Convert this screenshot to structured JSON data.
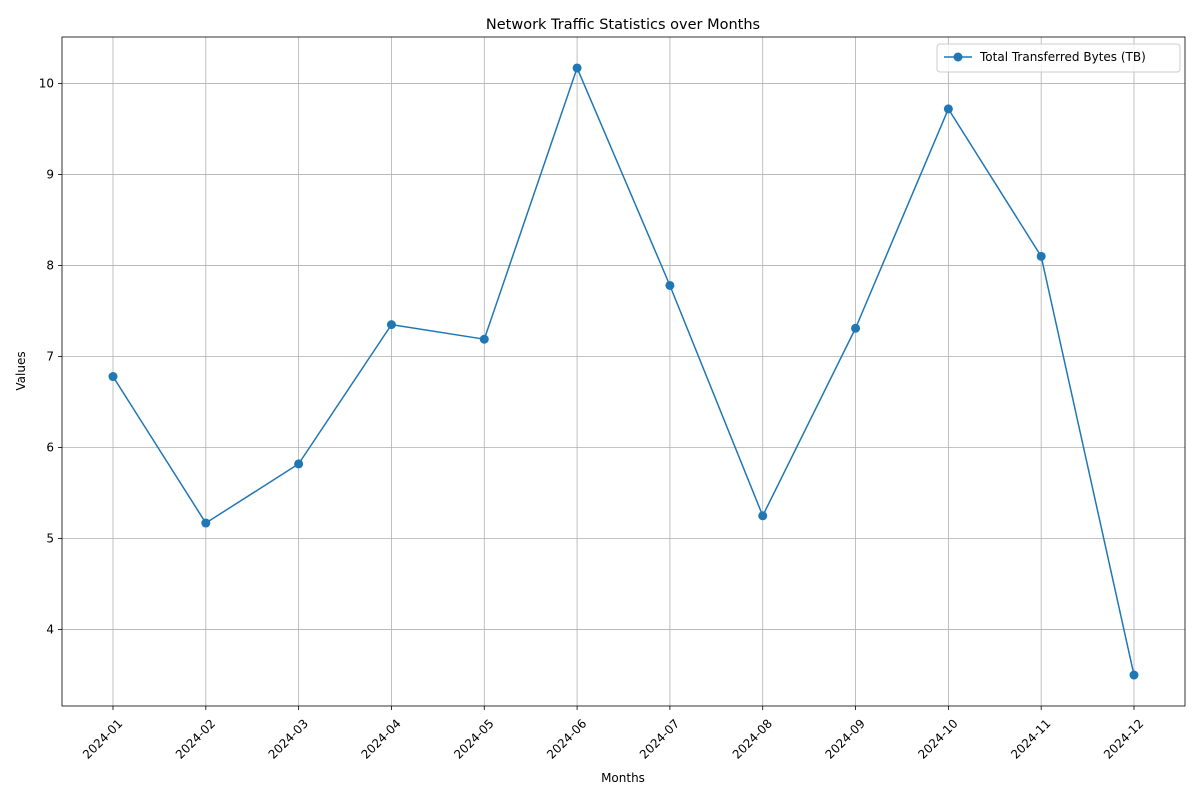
{
  "chart_data": {
    "type": "line",
    "title": "Network Traffic Statistics over Months",
    "xlabel": "Months",
    "ylabel": "Values",
    "categories": [
      "2024-01",
      "2024-02",
      "2024-03",
      "2024-04",
      "2024-05",
      "2024-06",
      "2024-07",
      "2024-08",
      "2024-09",
      "2024-10",
      "2024-11",
      "2024-12"
    ],
    "series": [
      {
        "name": "Total Transferred Bytes (TB)",
        "color": "#1f77b4",
        "marker": "circle",
        "values": [
          6.78,
          5.17,
          5.82,
          7.35,
          7.19,
          10.17,
          7.78,
          5.25,
          7.31,
          9.72,
          8.1,
          3.5
        ]
      }
    ],
    "ylim": [
      3.16,
      10.51
    ],
    "yticks": [
      4,
      5,
      6,
      7,
      8,
      9,
      10
    ],
    "grid": true,
    "legend_position": "top-right",
    "xtick_rotation": 45
  }
}
